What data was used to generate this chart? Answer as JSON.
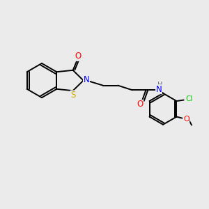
{
  "background_color": "#ebebeb",
  "atom_colors": {
    "C": "#000000",
    "N": "#0000ff",
    "O": "#ff0000",
    "S": "#ccaa00",
    "Cl": "#00cc00",
    "H": "#607080"
  },
  "bond_lw": 1.4,
  "font_size": 7.5,
  "fig_size": [
    3.0,
    3.0
  ],
  "dpi": 100
}
